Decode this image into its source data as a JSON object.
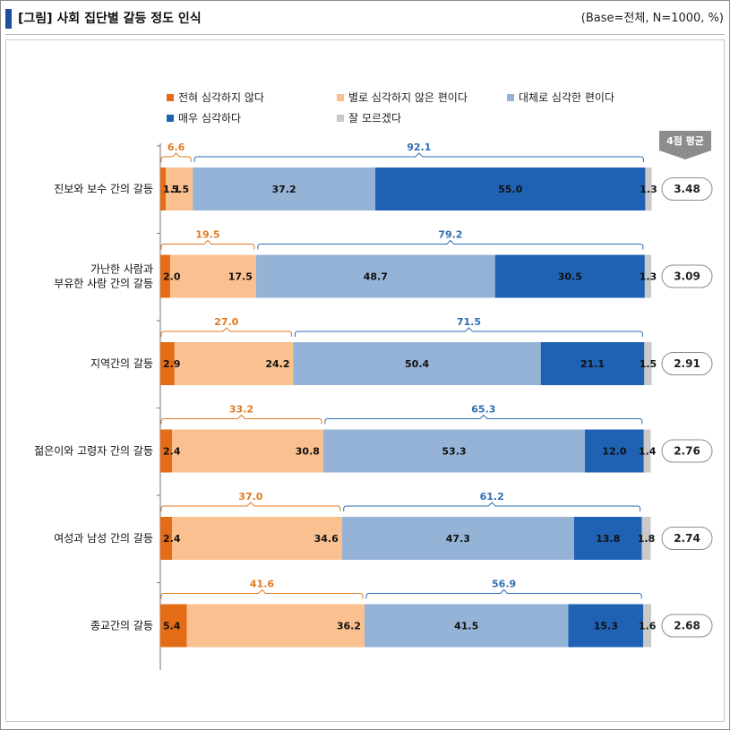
{
  "header": {
    "title": "[그림] 사회 집단별 갈등 정도 인식",
    "base_note": "(Base=전체, N=1000, %)"
  },
  "chart_data": {
    "type": "bar",
    "orientation": "horizontal",
    "stacked": true,
    "title": "[그림] 사회 집단별 갈등 정도 인식",
    "categories": [
      [
        "진보와 보수 간의 갈등"
      ],
      [
        "가난한 사람과",
        "부유한 사람 간의 갈등"
      ],
      [
        "지역간의 갈등"
      ],
      [
        "젊은이와 고령자 간의 갈등"
      ],
      [
        "여성과 남성 간의 갈등"
      ],
      [
        "종교간의 갈등"
      ]
    ],
    "series": [
      {
        "name": "전혀 심각하지 않다",
        "color": "#e46c17",
        "values": [
          1.1,
          2.0,
          2.9,
          2.4,
          2.4,
          5.4
        ]
      },
      {
        "name": "별로 심각하지 않은 편이다",
        "color": "#fac08f",
        "values": [
          5.5,
          17.5,
          24.2,
          30.8,
          34.6,
          36.2
        ]
      },
      {
        "name": "대체로 심각한 편이다",
        "color": "#95b3d7",
        "values": [
          37.2,
          48.7,
          50.4,
          53.3,
          47.3,
          41.5
        ]
      },
      {
        "name": "매우 심각하다",
        "color": "#1f62b4",
        "values": [
          55.0,
          30.5,
          21.1,
          12.0,
          13.8,
          15.3
        ]
      },
      {
        "name": "잘 모르겠다",
        "color": "#c9c9c9",
        "values": [
          1.3,
          1.3,
          1.5,
          1.4,
          1.8,
          1.6
        ]
      }
    ],
    "not_serious_sum": {
      "color": "#e07a1f",
      "values": [
        "6.6",
        "19.5",
        "27.0",
        "33.2",
        "37.0",
        "41.6"
      ]
    },
    "serious_sum": {
      "color": "#2e6db4",
      "values": [
        "92.1",
        "79.2",
        "71.5",
        "65.3",
        "61.2",
        "56.9"
      ]
    },
    "average": {
      "label": "4점 평균",
      "values": [
        "3.48",
        "3.09",
        "2.91",
        "2.76",
        "2.74",
        "2.68"
      ]
    },
    "legend_placement": "top",
    "xlim": [
      0,
      100
    ]
  }
}
